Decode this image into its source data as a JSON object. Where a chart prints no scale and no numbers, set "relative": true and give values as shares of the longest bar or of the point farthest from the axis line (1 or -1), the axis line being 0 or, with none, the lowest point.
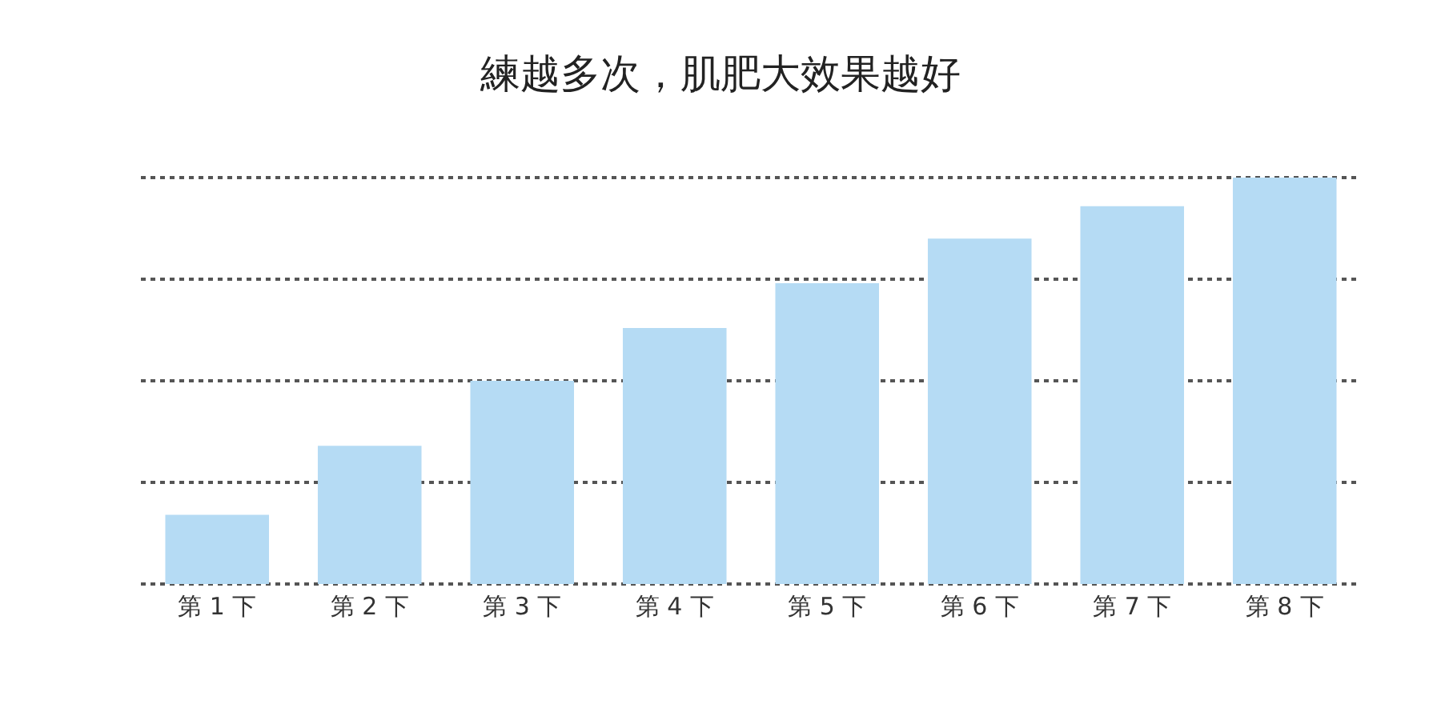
{
  "chart_data": {
    "type": "bar",
    "title": "練越多次，肌肥大效果越好",
    "relative": true,
    "categories": [
      "第 1 下",
      "第 2 下",
      "第 3 下",
      "第 4 下",
      "第 5 下",
      "第 6 下",
      "第 7 下",
      "第 8 下"
    ],
    "values": [
      0.17,
      0.34,
      0.5,
      0.63,
      0.74,
      0.85,
      0.93,
      1.0
    ],
    "color": "#b5dbf4",
    "grid": "y"
  }
}
